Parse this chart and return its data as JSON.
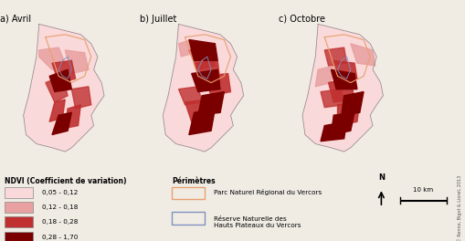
{
  "title_a": "a) Avril",
  "title_b": "b) Juillet",
  "title_c": "c) Octobre",
  "legend_title": "NDVI (Coefficient de variation)",
  "legend_items": [
    {
      "label": "0,05 - 0,12",
      "color": "#f9d9d9"
    },
    {
      "label": "0,12 - 0,18",
      "color": "#e8a0a0"
    },
    {
      "label": "0,18 - 0,28",
      "color": "#c03030"
    },
    {
      "label": "0,28 - 1,70",
      "color": "#7a0000"
    }
  ],
  "perimetres_title": "Périmètres",
  "perimetres_items": [
    {
      "label": "Parc Naturel Régional du Vercors",
      "edgecolor": "#e8a070",
      "facecolor": "none"
    },
    {
      "label": "Réserve Naturelle des\nHauts Plateaux du Vercors",
      "edgecolor": "#8090c0",
      "facecolor": "none"
    }
  ],
  "credit": "© Renno, Bigot & Liorel, 2013",
  "scalebar_label": "10 km",
  "north_arrow": "N",
  "bg_color": "#f0ece4",
  "map_colors": [
    "#f9d9d9",
    "#e8a0a0",
    "#c03030",
    "#7a0000"
  ],
  "fig_width": 5.09,
  "fig_height": 2.64,
  "dpi": 100
}
